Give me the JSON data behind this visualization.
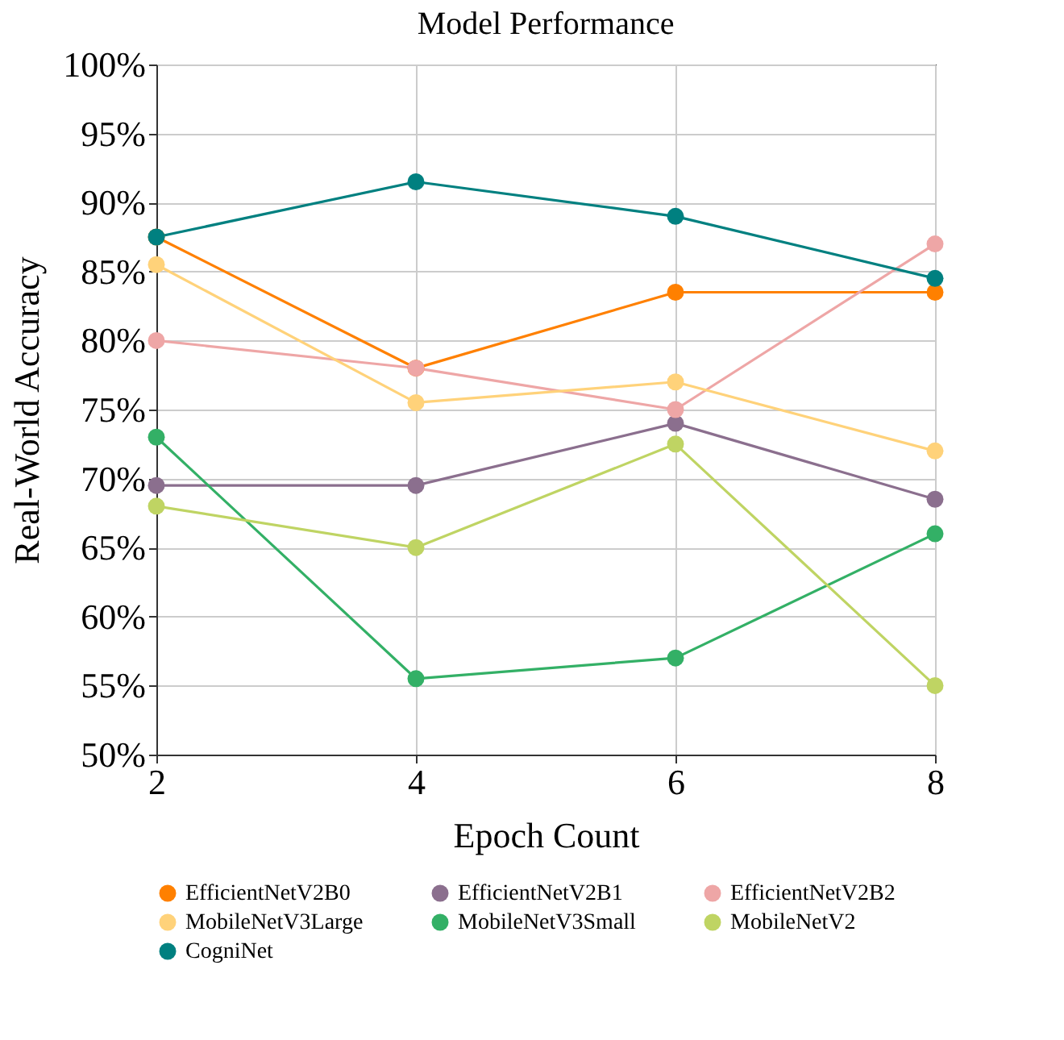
{
  "chart_data": {
    "type": "line",
    "title": "Model Performance",
    "xlabel": "Epoch Count",
    "ylabel": "Real-World Accuracy",
    "x": [
      2,
      4,
      6,
      8
    ],
    "series": [
      {
        "name": "EfficientNetV2B0",
        "color": "#ff8000",
        "values": [
          87.5,
          78,
          83.5,
          83.5
        ]
      },
      {
        "name": "EfficientNetV2B1",
        "color": "#8b6f8e",
        "values": [
          69.5,
          69.5,
          74,
          68.5
        ]
      },
      {
        "name": "EfficientNetV2B2",
        "color": "#eea6a6",
        "values": [
          80,
          78,
          75,
          87
        ]
      },
      {
        "name": "MobileNetV3Large",
        "color": "#ffd27a",
        "values": [
          85.5,
          75.5,
          77,
          72
        ]
      },
      {
        "name": "MobileNetV3Small",
        "color": "#33b066",
        "values": [
          73,
          55.5,
          57,
          66
        ]
      },
      {
        "name": "MobileNetV2",
        "color": "#bfd463",
        "values": [
          68,
          65,
          72.5,
          55
        ]
      },
      {
        "name": "CogniNet",
        "color": "#008080",
        "values": [
          87.5,
          91.5,
          89,
          84.5
        ]
      }
    ],
    "xlim": [
      2,
      8
    ],
    "xticks": [
      2,
      4,
      6,
      8
    ],
    "ylim": [
      50,
      100
    ],
    "yticks": [
      {
        "value": 50,
        "label": "50%"
      },
      {
        "value": 55,
        "label": "55%"
      },
      {
        "value": 60,
        "label": "60%"
      },
      {
        "value": 65,
        "label": "65%"
      },
      {
        "value": 70,
        "label": "70%"
      },
      {
        "value": 75,
        "label": "75%"
      },
      {
        "value": 80,
        "label": "80%"
      },
      {
        "value": 85,
        "label": "85%"
      },
      {
        "value": 90,
        "label": "90%"
      },
      {
        "value": 95,
        "label": "95%"
      },
      {
        "value": 100,
        "label": "100%"
      }
    ],
    "grid": true,
    "legend": "bottom",
    "marker": "circle",
    "line_style": "solid"
  }
}
